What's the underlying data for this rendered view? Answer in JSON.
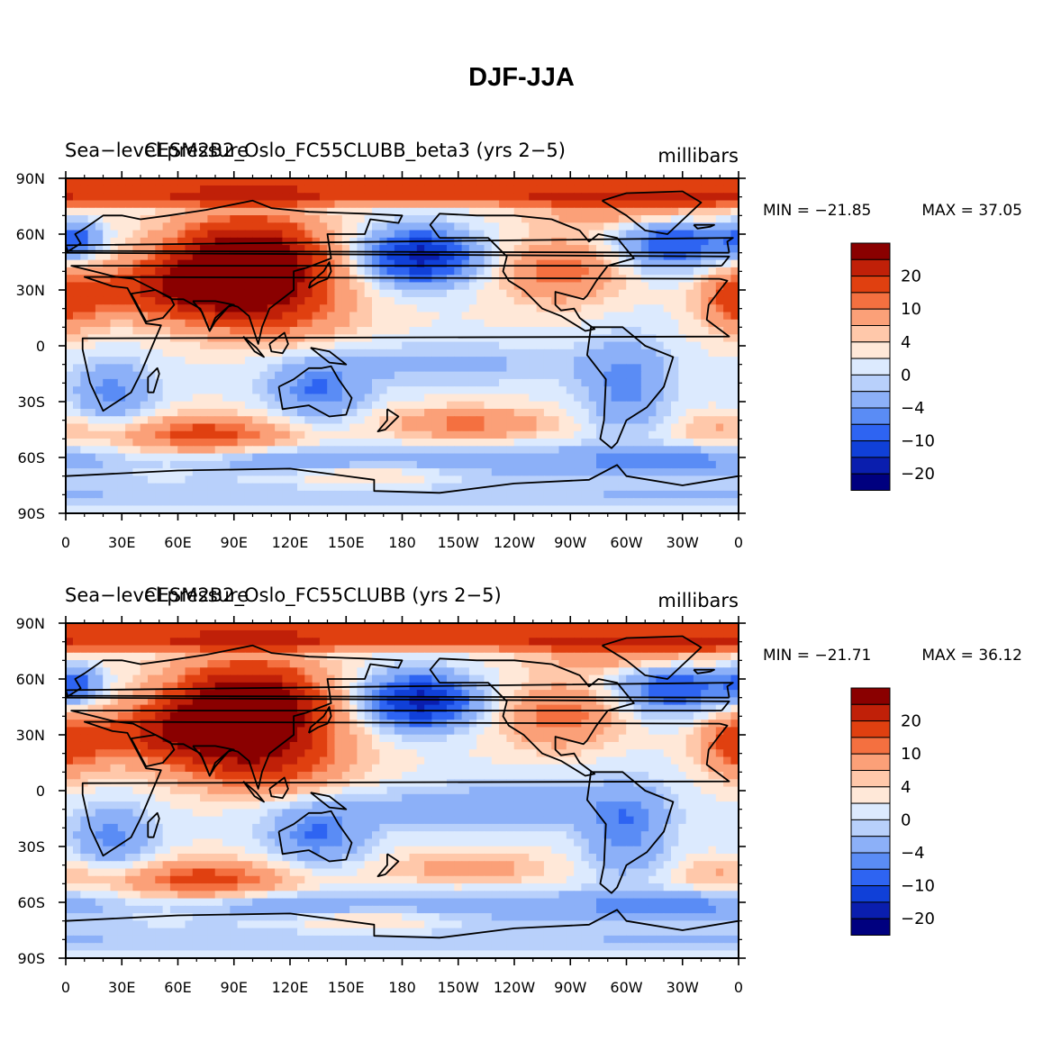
{
  "title": "DJF-JJA",
  "colors": {
    "levels": [
      "#00007f",
      "#0a1eae",
      "#1040d8",
      "#2e64f2",
      "#5a8cf5",
      "#8cb0f8",
      "#b8d0fb",
      "#dceafe",
      "#ffe8d8",
      "#ffc8aa",
      "#fba078",
      "#f47040",
      "#e04010",
      "#c02008",
      "#8a0000"
    ],
    "coast": "#000000",
    "axis": "#000000"
  },
  "chart_data": [
    {
      "type": "heatmap",
      "title_left": "Sea−level pressure",
      "title_center": "CESM2B2_Oslo_FC55CLUBB_beta3 (yrs 2−5)",
      "title_right": "millibars",
      "min_label": "MIN = −21.85",
      "max_label": "MAX =  37.05",
      "min": -21.85,
      "max": 37.05,
      "x_ticks": [
        "0",
        "30E",
        "60E",
        "90E",
        "120E",
        "150E",
        "180",
        "150W",
        "120W",
        "90W",
        "60W",
        "30W",
        "0"
      ],
      "y_ticks": [
        "90N",
        "60N",
        "30N",
        "0",
        "30S",
        "60S",
        "90S"
      ],
      "colorbar_levels": [
        -25,
        -20,
        -15,
        -10,
        -8,
        -4,
        -2,
        0,
        2,
        4,
        8,
        10,
        15,
        20,
        25
      ],
      "colorbar_labels": [
        "20",
        "10",
        "4",
        "0",
        "−4",
        "−10",
        "−20"
      ]
    },
    {
      "type": "heatmap",
      "title_left": "Sea−level pressure",
      "title_center": "CESM2B2_Oslo_FC55CLUBB (yrs 2−5)",
      "title_right": "millibars",
      "min_label": "MIN = −21.71",
      "max_label": "MAX =  36.12",
      "min": -21.71,
      "max": 36.12,
      "x_ticks": [
        "0",
        "30E",
        "60E",
        "90E",
        "120E",
        "150E",
        "180",
        "150W",
        "120W",
        "90W",
        "60W",
        "30W",
        "0"
      ],
      "y_ticks": [
        "90N",
        "60N",
        "30N",
        "0",
        "30S",
        "60S",
        "90S"
      ],
      "colorbar_levels": [
        -25,
        -20,
        -15,
        -10,
        -8,
        -4,
        -2,
        0,
        2,
        4,
        8,
        10,
        15,
        20,
        25
      ],
      "colorbar_labels": [
        "20",
        "10",
        "4",
        "0",
        "−4",
        "−10",
        "−20"
      ]
    }
  ]
}
